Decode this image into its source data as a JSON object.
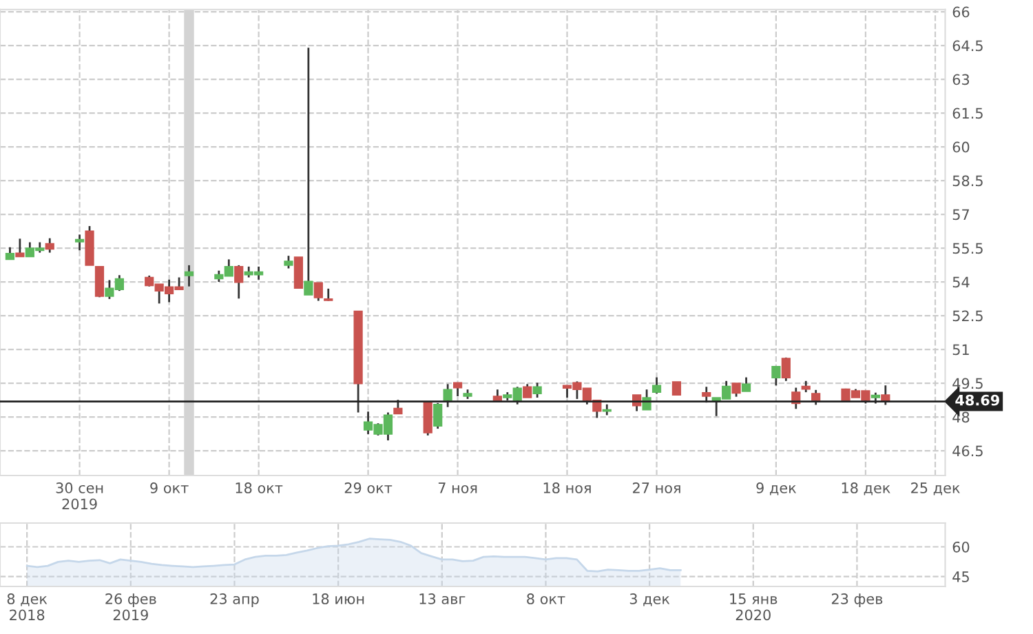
{
  "chart_data": [
    {
      "type": "candlestick",
      "x": [
        "2019-09-23",
        "2019-09-24",
        "2019-09-25",
        "2019-09-26",
        "2019-09-27",
        "2019-09-30",
        "2019-10-01",
        "2019-10-02",
        "2019-10-03",
        "2019-10-04",
        "2019-10-07",
        "2019-10-08",
        "2019-10-09",
        "2019-10-10",
        "2019-10-11",
        "2019-10-14",
        "2019-10-15",
        "2019-10-16",
        "2019-10-17",
        "2019-10-18",
        "2019-10-21",
        "2019-10-22",
        "2019-10-23",
        "2019-10-24",
        "2019-10-25",
        "2019-10-28",
        "2019-10-29",
        "2019-10-30",
        "2019-10-31",
        "2019-11-01",
        "2019-11-04",
        "2019-11-05",
        "2019-11-06",
        "2019-11-07",
        "2019-11-08",
        "2019-11-11",
        "2019-11-12",
        "2019-11-13",
        "2019-11-14",
        "2019-11-15",
        "2019-11-18",
        "2019-11-19",
        "2019-11-20",
        "2019-11-21",
        "2019-11-22",
        "2019-11-25",
        "2019-11-26",
        "2019-11-27",
        "2019-11-29",
        "2019-12-02",
        "2019-12-03",
        "2019-12-04",
        "2019-12-05",
        "2019-12-06",
        "2019-12-09",
        "2019-12-10",
        "2019-12-11",
        "2019-12-12",
        "2019-12-13",
        "2019-12-16",
        "2019-12-17",
        "2019-12-18",
        "2019-12-19",
        "2019-12-20"
      ],
      "ohlc": [
        [
          55.0,
          55.54,
          55.0,
          55.26
        ],
        [
          55.28,
          55.92,
          55.12,
          55.12
        ],
        [
          55.12,
          55.76,
          55.12,
          55.5
        ],
        [
          55.4,
          55.76,
          55.3,
          55.5
        ],
        [
          55.7,
          55.94,
          55.3,
          55.46
        ],
        [
          55.78,
          56.1,
          55.4,
          55.88
        ],
        [
          56.26,
          56.48,
          54.74,
          54.74
        ],
        [
          54.68,
          54.68,
          53.32,
          53.36
        ],
        [
          53.36,
          54.08,
          53.24,
          53.72
        ],
        [
          53.66,
          54.3,
          53.6,
          54.14
        ],
        [
          54.2,
          54.28,
          53.8,
          53.84
        ],
        [
          53.9,
          53.9,
          53.04,
          53.6
        ],
        [
          53.78,
          54.1,
          53.1,
          53.48
        ],
        [
          53.78,
          54.2,
          53.66,
          53.66
        ],
        [
          54.28,
          54.74,
          53.8,
          54.44
        ],
        [
          54.14,
          54.5,
          54.0,
          54.32
        ],
        [
          54.26,
          55.0,
          54.26,
          54.68
        ],
        [
          54.68,
          54.74,
          53.26,
          53.98
        ],
        [
          54.32,
          54.68,
          54.2,
          54.44
        ],
        [
          54.32,
          54.68,
          54.1,
          54.44
        ],
        [
          54.74,
          55.16,
          54.6,
          54.92
        ],
        [
          55.1,
          55.1,
          53.72,
          53.72
        ],
        [
          53.42,
          64.4,
          53.42,
          54.02
        ],
        [
          53.96,
          53.96,
          53.16,
          53.3
        ],
        [
          53.24,
          53.7,
          53.16,
          53.18
        ],
        [
          52.7,
          52.7,
          48.2,
          49.48
        ],
        [
          47.42,
          48.24,
          47.24,
          47.78
        ],
        [
          47.24,
          47.72,
          47.18,
          47.66
        ],
        [
          47.24,
          48.2,
          46.96,
          48.08
        ],
        [
          48.38,
          48.76,
          48.14,
          48.14
        ],
        [
          48.62,
          48.62,
          47.18,
          47.3
        ],
        [
          47.6,
          48.62,
          47.48,
          48.56
        ],
        [
          48.74,
          49.46,
          48.44,
          49.22
        ],
        [
          49.52,
          49.52,
          48.92,
          49.3
        ],
        [
          48.92,
          49.22,
          48.8,
          49.04
        ],
        [
          48.92,
          49.22,
          48.74,
          48.74
        ],
        [
          48.86,
          49.1,
          48.74,
          48.98
        ],
        [
          48.74,
          49.34,
          48.56,
          49.28
        ],
        [
          49.34,
          49.46,
          48.86,
          48.86
        ],
        [
          49.04,
          49.52,
          48.86,
          49.34
        ],
        [
          49.4,
          49.4,
          48.86,
          49.28
        ],
        [
          49.52,
          49.58,
          48.8,
          49.22
        ],
        [
          49.28,
          49.28,
          48.56,
          48.74
        ],
        [
          48.74,
          48.74,
          47.96,
          48.26
        ],
        [
          48.26,
          48.56,
          48.08,
          48.32
        ],
        [
          48.98,
          48.98,
          48.26,
          48.5
        ],
        [
          48.32,
          49.22,
          48.32,
          48.86
        ],
        [
          49.1,
          49.76,
          49.04,
          49.4
        ],
        [
          49.56,
          49.56,
          48.98,
          48.98
        ],
        [
          49.08,
          49.34,
          48.64,
          48.92
        ],
        [
          48.7,
          48.86,
          48.04,
          48.86
        ],
        [
          48.8,
          49.6,
          48.8,
          49.36
        ],
        [
          49.5,
          49.5,
          48.9,
          49.06
        ],
        [
          49.14,
          49.76,
          49.14,
          49.46
        ],
        [
          49.74,
          50.24,
          49.4,
          50.24
        ],
        [
          50.6,
          50.64,
          49.6,
          49.74
        ],
        [
          49.1,
          49.3,
          48.36,
          48.6
        ],
        [
          49.36,
          49.6,
          49.1,
          49.24
        ],
        [
          49.04,
          49.2,
          48.54,
          48.74
        ],
        [
          49.24,
          49.26,
          48.74,
          48.74
        ],
        [
          49.16,
          49.24,
          48.86,
          48.86
        ],
        [
          49.16,
          49.16,
          48.6,
          48.74
        ],
        [
          48.86,
          49.08,
          48.6,
          48.96
        ],
        [
          48.98,
          49.4,
          48.54,
          48.69
        ]
      ],
      "colors": [
        "#5cb85c",
        "#c9534f",
        "#5cb85c",
        "#5cb85c",
        "#c9534f",
        "#5cb85c",
        "#c9534f",
        "#c9534f",
        "#5cb85c",
        "#5cb85c",
        "#c9534f",
        "#c9534f",
        "#c9534f",
        "#c9534f",
        "#5cb85c",
        "#5cb85c",
        "#5cb85c",
        "#c9534f",
        "#5cb85c",
        "#5cb85c",
        "#5cb85c",
        "#c9534f",
        "#5cb85c",
        "#c9534f",
        "#c9534f",
        "#c9534f",
        "#5cb85c",
        "#5cb85c",
        "#5cb85c",
        "#c9534f",
        "#c9534f",
        "#5cb85c",
        "#5cb85c",
        "#c9534f",
        "#5cb85c",
        "#c9534f",
        "#5cb85c",
        "#5cb85c",
        "#c9534f",
        "#5cb85c",
        "#c9534f",
        "#c9534f",
        "#c9534f",
        "#c9534f",
        "#5cb85c",
        "#c9534f",
        "#5cb85c",
        "#5cb85c",
        "#c9534f",
        "#c9534f",
        "#5cb85c",
        "#5cb85c",
        "#c9534f",
        "#5cb85c",
        "#5cb85c",
        "#c9534f",
        "#c9534f",
        "#c9534f",
        "#c9534f",
        "#c9534f",
        "#c9534f",
        "#c9534f",
        "#5cb85c",
        "#c9534f"
      ],
      "xlim": [
        "2019-09-22",
        "2019-12-26"
      ],
      "xticks": [
        {
          "value": "2019-09-30",
          "label": "30 сен\n2019"
        },
        {
          "value": "2019-10-09",
          "label": "9 окт"
        },
        {
          "value": "2019-10-18",
          "label": "18 окт"
        },
        {
          "value": "2019-10-29",
          "label": "29 окт"
        },
        {
          "value": "2019-11-07",
          "label": "7 ноя"
        },
        {
          "value": "2019-11-18",
          "label": "18 ноя"
        },
        {
          "value": "2019-11-27",
          "label": "27 ноя"
        },
        {
          "value": "2019-12-09",
          "label": "9 дек"
        },
        {
          "value": "2019-12-18",
          "label": "18 дек"
        },
        {
          "value": "2019-12-25",
          "label": "25 дек"
        }
      ],
      "ylim": [
        45.4,
        66.1
      ],
      "yticks": [
        46.5,
        48,
        49.5,
        51,
        52.5,
        54,
        55.5,
        57,
        58.5,
        60,
        61.5,
        63,
        64.5,
        66
      ],
      "grid": true,
      "ref_lines": [
        {
          "axis": "y",
          "value": 48.69,
          "label": "48.69",
          "color": "#222222"
        }
      ],
      "bands": [
        {
          "axis": "x",
          "from": "2019-10-10T12:00",
          "to": "2019-10-11T12:00",
          "color": "#d3d3d3"
        }
      ]
    },
    {
      "type": "area",
      "categories": [
        "8 дек\n2018",
        null,
        null,
        null,
        null,
        null,
        null,
        null,
        null,
        null,
        "26 фев\n2019",
        null,
        null,
        null,
        null,
        null,
        null,
        null,
        null,
        null,
        "23 апр",
        null,
        null,
        null,
        null,
        null,
        null,
        null,
        null,
        null,
        "18 июн",
        null,
        null,
        null,
        null,
        null,
        null,
        null,
        null,
        null,
        "13 авг",
        null,
        null,
        null,
        null,
        null,
        null,
        null,
        null,
        null,
        "8 окт",
        null,
        null,
        null,
        null,
        null,
        null,
        null,
        null,
        null,
        "3 дек",
        null,
        null,
        null,
        null,
        null,
        null,
        null,
        null,
        null,
        "15 янв\n2020",
        null,
        null,
        null,
        null,
        null,
        null,
        null,
        null,
        null,
        "23 фев",
        null,
        null,
        null,
        null,
        null,
        null,
        null,
        null
      ],
      "series": [
        {
          "color": "#c5d7ea",
          "values": [
            50.4,
            49.8,
            50.4,
            52.4,
            53.0,
            52.4,
            53.0,
            53.3,
            51.7,
            53.6,
            53.0,
            52.4,
            51.4,
            50.8,
            50.4,
            50.1,
            49.8,
            50.1,
            50.4,
            50.8,
            51.1,
            53.6,
            54.9,
            55.5,
            55.5,
            55.9,
            57.1,
            58.1,
            59.4,
            60.3,
            60.6,
            61.3,
            62.5,
            64.1,
            63.8,
            63.5,
            62.5,
            60.6,
            56.8,
            55.2,
            53.6,
            53.6,
            52.7,
            53.0,
            54.9,
            55.2,
            54.9,
            54.9,
            54.9,
            54.3,
            53.6,
            54.3,
            54.3,
            53.6,
            47.9,
            47.6,
            48.5,
            48.2,
            47.9,
            47.9,
            48.5,
            49.2,
            48.2,
            48.2,
            null,
            null,
            null,
            null,
            null,
            null,
            null,
            null,
            null,
            null,
            null,
            null,
            null,
            null,
            null,
            null,
            null,
            null,
            null,
            null,
            null,
            null,
            null,
            null,
            null
          ]
        }
      ],
      "ylim": [
        40,
        72
      ],
      "yticks": [
        45,
        60
      ],
      "grid": true
    }
  ]
}
